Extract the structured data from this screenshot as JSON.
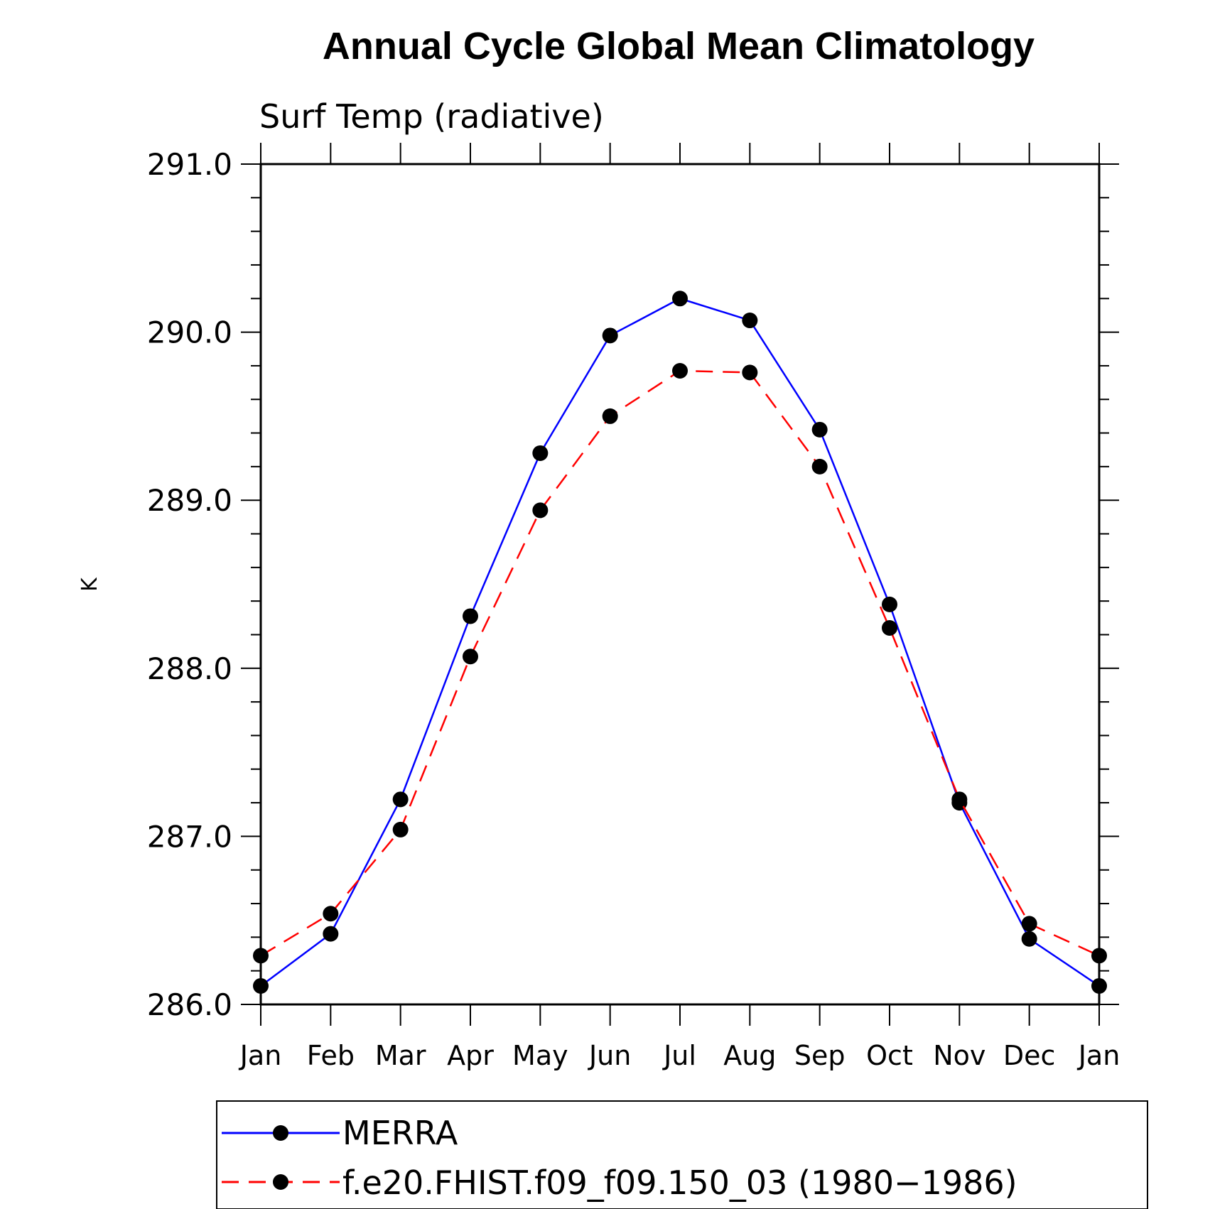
{
  "chart_data": {
    "type": "line",
    "title": "Annual Cycle Global Mean Climatology",
    "subtitle": "Surf Temp (radiative)",
    "xlabel": "",
    "ylabel": "K",
    "categories": [
      "Jan",
      "Feb",
      "Mar",
      "Apr",
      "May",
      "Jun",
      "Jul",
      "Aug",
      "Sep",
      "Oct",
      "Nov",
      "Dec",
      "Jan"
    ],
    "ylim": [
      286.0,
      291.0
    ],
    "yticks": [
      "286.0",
      "287.0",
      "288.0",
      "289.0",
      "290.0",
      "291.0"
    ],
    "series": [
      {
        "name": "MERRA",
        "color": "#0000ff",
        "line_style": "solid",
        "marker": "filled-circle",
        "values": [
          286.11,
          286.42,
          287.22,
          288.31,
          289.28,
          289.98,
          290.2,
          290.07,
          289.42,
          288.38,
          287.2,
          286.39,
          286.11
        ]
      },
      {
        "name": "f.e20.FHIST.f09_f09.150_03 (1980−1986)",
        "color": "#ff0000",
        "line_style": "dashed",
        "marker": "filled-circle",
        "values": [
          286.29,
          286.54,
          287.04,
          288.07,
          288.94,
          289.5,
          289.77,
          289.76,
          289.2,
          288.24,
          287.22,
          286.48,
          286.29
        ]
      }
    ],
    "grid": false,
    "legend_position": "bottom"
  }
}
